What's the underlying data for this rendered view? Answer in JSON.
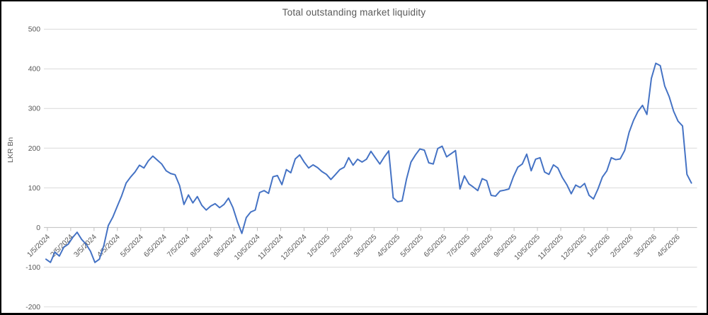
{
  "window": {
    "background": "#ffffff",
    "border_color": "#000000"
  },
  "chart_data": {
    "type": "line",
    "title": "Total outstanding market liquidity",
    "ylabel": "LKR Bn",
    "xlabel": "",
    "ylim": [
      -200,
      500
    ],
    "y_ticks": [
      500,
      400,
      300,
      200,
      100,
      0,
      -100,
      -200
    ],
    "x_tick_labels": [
      "1/5/2024",
      "2/5/2024",
      "3/5/2024",
      "4/5/2024",
      "5/5/2024",
      "6/5/2024",
      "7/5/2024",
      "8/5/2024",
      "9/5/2024",
      "10/5/2024",
      "11/5/2024",
      "12/5/2024",
      "1/5/2025",
      "2/5/2025",
      "3/5/2025",
      "4/5/2025",
      "5/5/2025",
      "6/5/2025",
      "7/5/2025",
      "8/5/2025",
      "9/5/2025",
      "10/5/2025",
      "11/5/2025",
      "12/5/2025",
      "1/5/2026",
      "2/5/2026",
      "3/5/2026",
      "4/5/2026"
    ],
    "x_tick_frequency": "monthly",
    "data_frequency": "weekly (approx.)",
    "grid": "horizontal",
    "legend": "none",
    "gridline_color": "#D9D9D9",
    "axis_line_color": "#BFBFBF",
    "axis_text_color": "#595959",
    "series": [
      {
        "name": "Total outstanding market liquidity",
        "color": "#4472C4",
        "values": [
          -80,
          -88,
          -62,
          -72,
          -50,
          -42,
          -25,
          -12,
          -30,
          -42,
          -60,
          -88,
          -80,
          -45,
          5,
          26,
          53,
          80,
          112,
          127,
          140,
          157,
          150,
          168,
          180,
          170,
          160,
          143,
          136,
          133,
          106,
          58,
          82,
          62,
          78,
          56,
          44,
          54,
          60,
          50,
          58,
          74,
          50,
          15,
          -15,
          25,
          39,
          44,
          88,
          93,
          86,
          128,
          131,
          108,
          146,
          138,
          173,
          183,
          165,
          150,
          158,
          151,
          141,
          134,
          121,
          133,
          146,
          152,
          176,
          157,
          172,
          165,
          172,
          192,
          176,
          160,
          178,
          193,
          75,
          65,
          67,
          122,
          165,
          183,
          198,
          195,
          163,
          160,
          199,
          205,
          178,
          186,
          194,
          97,
          130,
          110,
          102,
          93,
          123,
          118,
          81,
          79,
          92,
          94,
          97,
          128,
          152,
          160,
          185,
          143,
          172,
          176,
          140,
          134,
          158,
          150,
          126,
          108,
          85,
          107,
          101,
          111,
          81,
          72,
          97,
          127,
          143,
          176,
          171,
          173,
          194,
          240,
          270,
          293,
          308,
          285,
          376,
          414,
          408,
          357,
          330,
          293,
          268,
          256,
          134,
          112
        ]
      }
    ]
  }
}
